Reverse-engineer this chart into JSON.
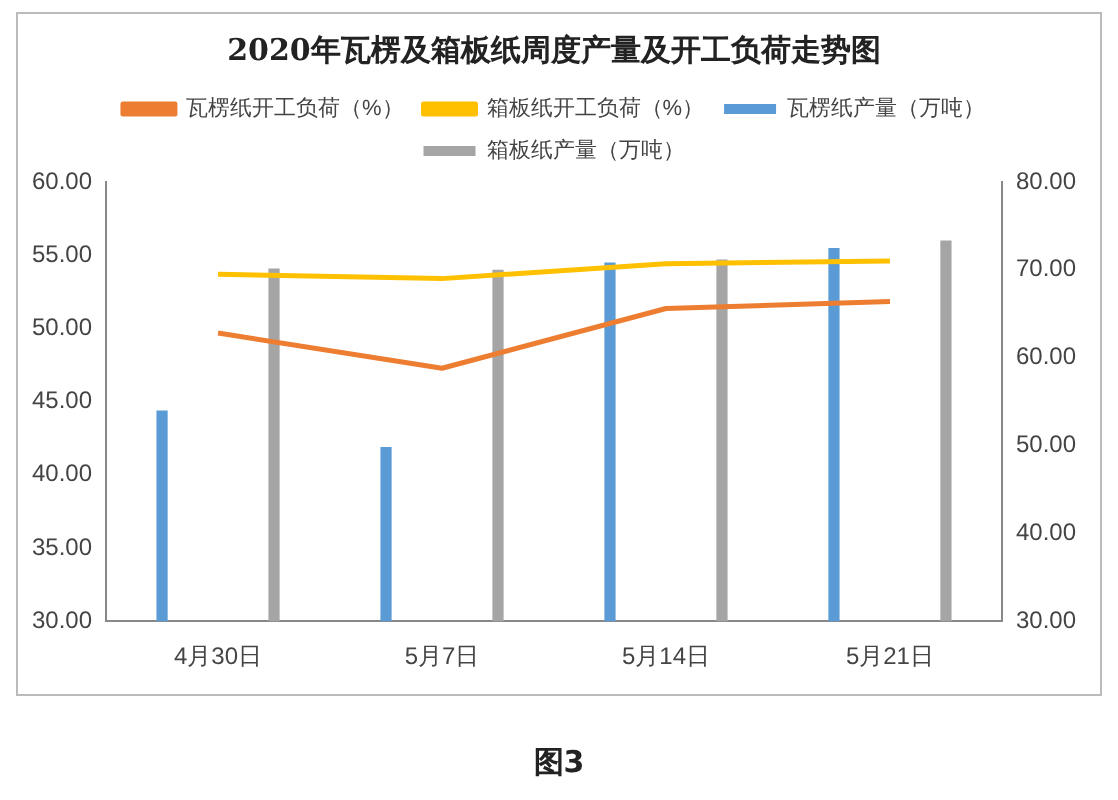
{
  "chart_data": {
    "type": "bar",
    "title": "2020年瓦楞及箱板纸周度产量及开工负荷走势图",
    "categories": [
      "4月30日",
      "5月7日",
      "5月14日",
      "5月21日"
    ],
    "series": [
      {
        "name": "瓦楞纸产量（万吨）",
        "color": "#5b9bd5",
        "values": [
          44.4,
          41.9,
          54.5,
          55.5
        ]
      },
      {
        "name": "箱板纸产量（万吨）",
        "color": "#a5a5a5",
        "values": [
          54.1,
          54.0,
          54.7,
          56.0
        ]
      },
      {
        "name": "瓦楞纸开工负荷（%）",
        "type": "line",
        "axis": "y2",
        "color": "#ed7d31",
        "values": [
          62.8,
          58.8,
          65.6,
          66.4
        ]
      },
      {
        "name": "箱板纸开工负荷（%）",
        "type": "line",
        "axis": "y2",
        "color": "#ffc000",
        "values": [
          69.5,
          69.0,
          70.7,
          71.0
        ]
      }
    ],
    "ylim": [
      30,
      60
    ],
    "yticks": [
      {
        "value": 30,
        "label": "30.00"
      },
      {
        "value": 35,
        "label": "35.00"
      },
      {
        "value": 40,
        "label": "40.00"
      },
      {
        "value": 45,
        "label": "45.00"
      },
      {
        "value": 50,
        "label": "50.00"
      },
      {
        "value": 55,
        "label": "55.00"
      },
      {
        "value": 60,
        "label": "60.00"
      }
    ],
    "y2lim": [
      30,
      80
    ],
    "y2ticks": [
      {
        "value": 30,
        "label": "30.00"
      },
      {
        "value": 40,
        "label": "40.00"
      },
      {
        "value": 50,
        "label": "50.00"
      },
      {
        "value": 60,
        "label": "60.00"
      },
      {
        "value": 70,
        "label": "70.00"
      },
      {
        "value": 80,
        "label": "80.00"
      }
    ],
    "grid": false,
    "legend": "top",
    "marker": "none",
    "annotations": [
      "图3"
    ]
  }
}
